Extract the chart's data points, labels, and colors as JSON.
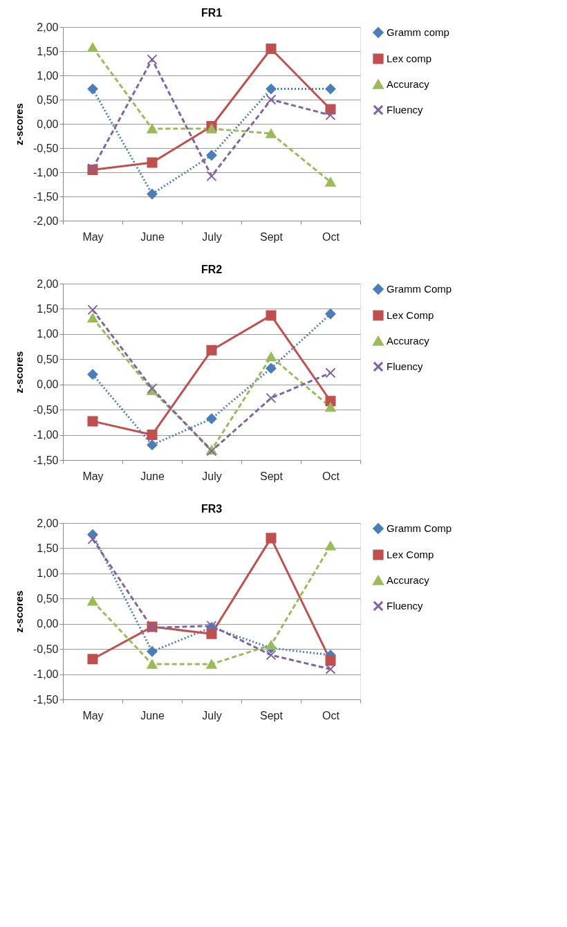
{
  "chart_data": [
    {
      "type": "line",
      "title": "FR1",
      "ylabel": "z-scores",
      "categories": [
        "May",
        "June",
        "July",
        "Sept",
        "Oct"
      ],
      "ylim": [
        -2,
        2
      ],
      "yticks": [
        {
          "value": -2,
          "label": "-2,00"
        },
        {
          "value": -1.5,
          "label": "-1,50"
        },
        {
          "value": -1,
          "label": "-1,00"
        },
        {
          "value": -0.5,
          "label": "-0,50"
        },
        {
          "value": 0,
          "label": "0,00"
        },
        {
          "value": 0.5,
          "label": "0,50"
        },
        {
          "value": 1,
          "label": "1,00"
        },
        {
          "value": 1.5,
          "label": "1,50"
        },
        {
          "value": 2,
          "label": "2,00"
        }
      ],
      "grid": "y",
      "legend": "top right",
      "series": [
        {
          "name": "Gramm comp",
          "color": "#4a7ebb",
          "marker": "diamond",
          "line_style": "dotted",
          "values": [
            0.72,
            -1.45,
            -0.65,
            0.72,
            0.72
          ]
        },
        {
          "name": "Lex comp",
          "color": "#c0504d",
          "marker": "square",
          "line_style": "solid",
          "values": [
            -0.95,
            -0.8,
            -0.05,
            1.55,
            0.3
          ]
        },
        {
          "name": "Accuracy",
          "color": "#9bbb59",
          "marker": "triangle",
          "line_style": "dashed",
          "values": [
            1.58,
            -0.1,
            -0.1,
            -0.2,
            -1.2
          ]
        },
        {
          "name": "Fluency",
          "color": "#8064a2",
          "marker": "cross",
          "line_style": "dashed",
          "values": [
            -0.92,
            1.33,
            -1.08,
            0.5,
            0.18
          ]
        }
      ]
    },
    {
      "type": "line",
      "title": "FR2",
      "ylabel": "z-scores",
      "categories": [
        "May",
        "June",
        "July",
        "Sept",
        "Oct"
      ],
      "ylim": [
        -1.5,
        2
      ],
      "yticks": [
        {
          "value": -1.5,
          "label": "-1,50"
        },
        {
          "value": -1,
          "label": "-1,00"
        },
        {
          "value": -0.5,
          "label": "-0,50"
        },
        {
          "value": 0,
          "label": "0,00"
        },
        {
          "value": 0.5,
          "label": "0,50"
        },
        {
          "value": 1,
          "label": "1,00"
        },
        {
          "value": 1.5,
          "label": "1,50"
        },
        {
          "value": 2,
          "label": "2,00"
        }
      ],
      "grid": "y",
      "legend": "top right",
      "series": [
        {
          "name": "Gramm Comp",
          "color": "#4a7ebb",
          "marker": "diamond",
          "line_style": "dotted",
          "values": [
            0.2,
            -1.2,
            -0.68,
            0.32,
            1.4
          ]
        },
        {
          "name": "Lex Comp",
          "color": "#c0504d",
          "marker": "square",
          "line_style": "solid",
          "values": [
            -0.73,
            -1.0,
            0.68,
            1.37,
            -0.33
          ]
        },
        {
          "name": "Accuracy",
          "color": "#9bbb59",
          "marker": "triangle",
          "line_style": "dashed",
          "values": [
            1.32,
            -0.12,
            -1.3,
            0.55,
            -0.45
          ]
        },
        {
          "name": "Fluency",
          "color": "#8064a2",
          "marker": "cross",
          "line_style": "dashed",
          "values": [
            1.48,
            -0.08,
            -1.32,
            -0.27,
            0.23
          ]
        }
      ]
    },
    {
      "type": "line",
      "title": "FR3",
      "ylabel": "z-scores",
      "categories": [
        "May",
        "June",
        "July",
        "Sept",
        "Oct"
      ],
      "ylim": [
        -1.5,
        2
      ],
      "yticks": [
        {
          "value": -1.5,
          "label": "-1,50"
        },
        {
          "value": -1,
          "label": "-1,00"
        },
        {
          "value": -0.5,
          "label": "-0,50"
        },
        {
          "value": 0,
          "label": "0,00"
        },
        {
          "value": 0.5,
          "label": "0,50"
        },
        {
          "value": 1,
          "label": "1,00"
        },
        {
          "value": 1.5,
          "label": "1,50"
        },
        {
          "value": 2,
          "label": "2,00"
        }
      ],
      "grid": "y",
      "legend": "top right",
      "series": [
        {
          "name": "Gramm Comp",
          "color": "#4a7ebb",
          "marker": "diamond",
          "line_style": "dotted",
          "values": [
            1.77,
            -0.55,
            -0.07,
            -0.48,
            -0.62
          ]
        },
        {
          "name": "Lex Comp",
          "color": "#c0504d",
          "marker": "square",
          "line_style": "solid",
          "values": [
            -0.7,
            -0.06,
            -0.2,
            1.7,
            -0.73
          ]
        },
        {
          "name": "Accuracy",
          "color": "#9bbb59",
          "marker": "triangle",
          "line_style": "dashed",
          "values": [
            0.45,
            -0.8,
            -0.8,
            -0.42,
            1.55
          ]
        },
        {
          "name": "Fluency",
          "color": "#8064a2",
          "marker": "cross",
          "line_style": "dashed",
          "values": [
            1.68,
            -0.08,
            -0.04,
            -0.62,
            -0.9
          ]
        }
      ]
    }
  ]
}
